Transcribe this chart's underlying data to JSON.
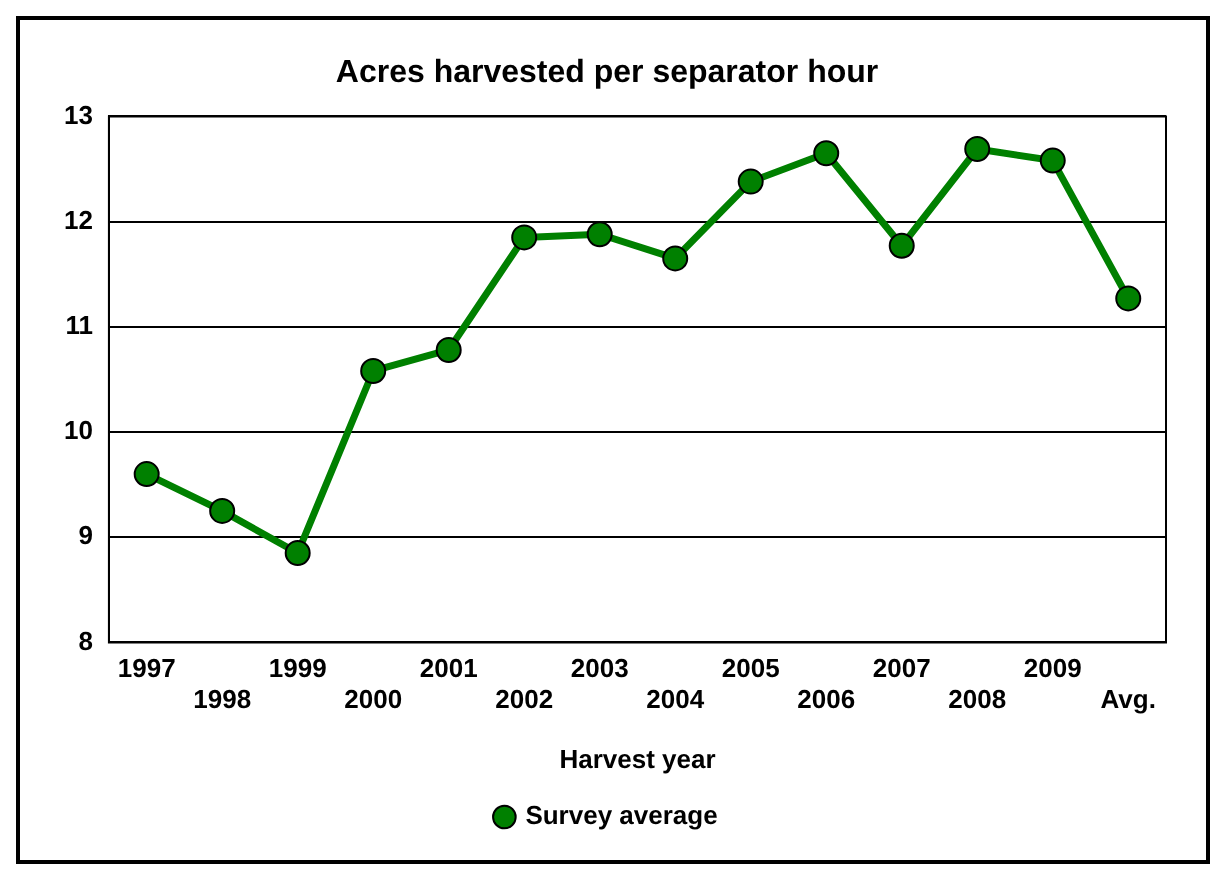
{
  "chart_data": {
    "type": "line",
    "title": "Acres harvested per separator hour",
    "xlabel": "Harvest year",
    "categories": [
      "1997",
      "1998",
      "1999",
      "2000",
      "2001",
      "2002",
      "2003",
      "2004",
      "2005",
      "2006",
      "2007",
      "2008",
      "2009",
      "Avg."
    ],
    "series": [
      {
        "name": "Survey average",
        "color": "#008000",
        "values": [
          9.6,
          9.25,
          8.85,
          10.58,
          10.78,
          11.85,
          11.88,
          11.65,
          12.38,
          12.65,
          11.77,
          12.69,
          12.58,
          11.27
        ]
      }
    ],
    "ylim": [
      8,
      13
    ],
    "yticks": [
      8,
      9,
      10,
      11,
      12,
      13
    ],
    "grid": "y",
    "legend": "bottom",
    "marker": "circle",
    "line_style": "solid"
  }
}
